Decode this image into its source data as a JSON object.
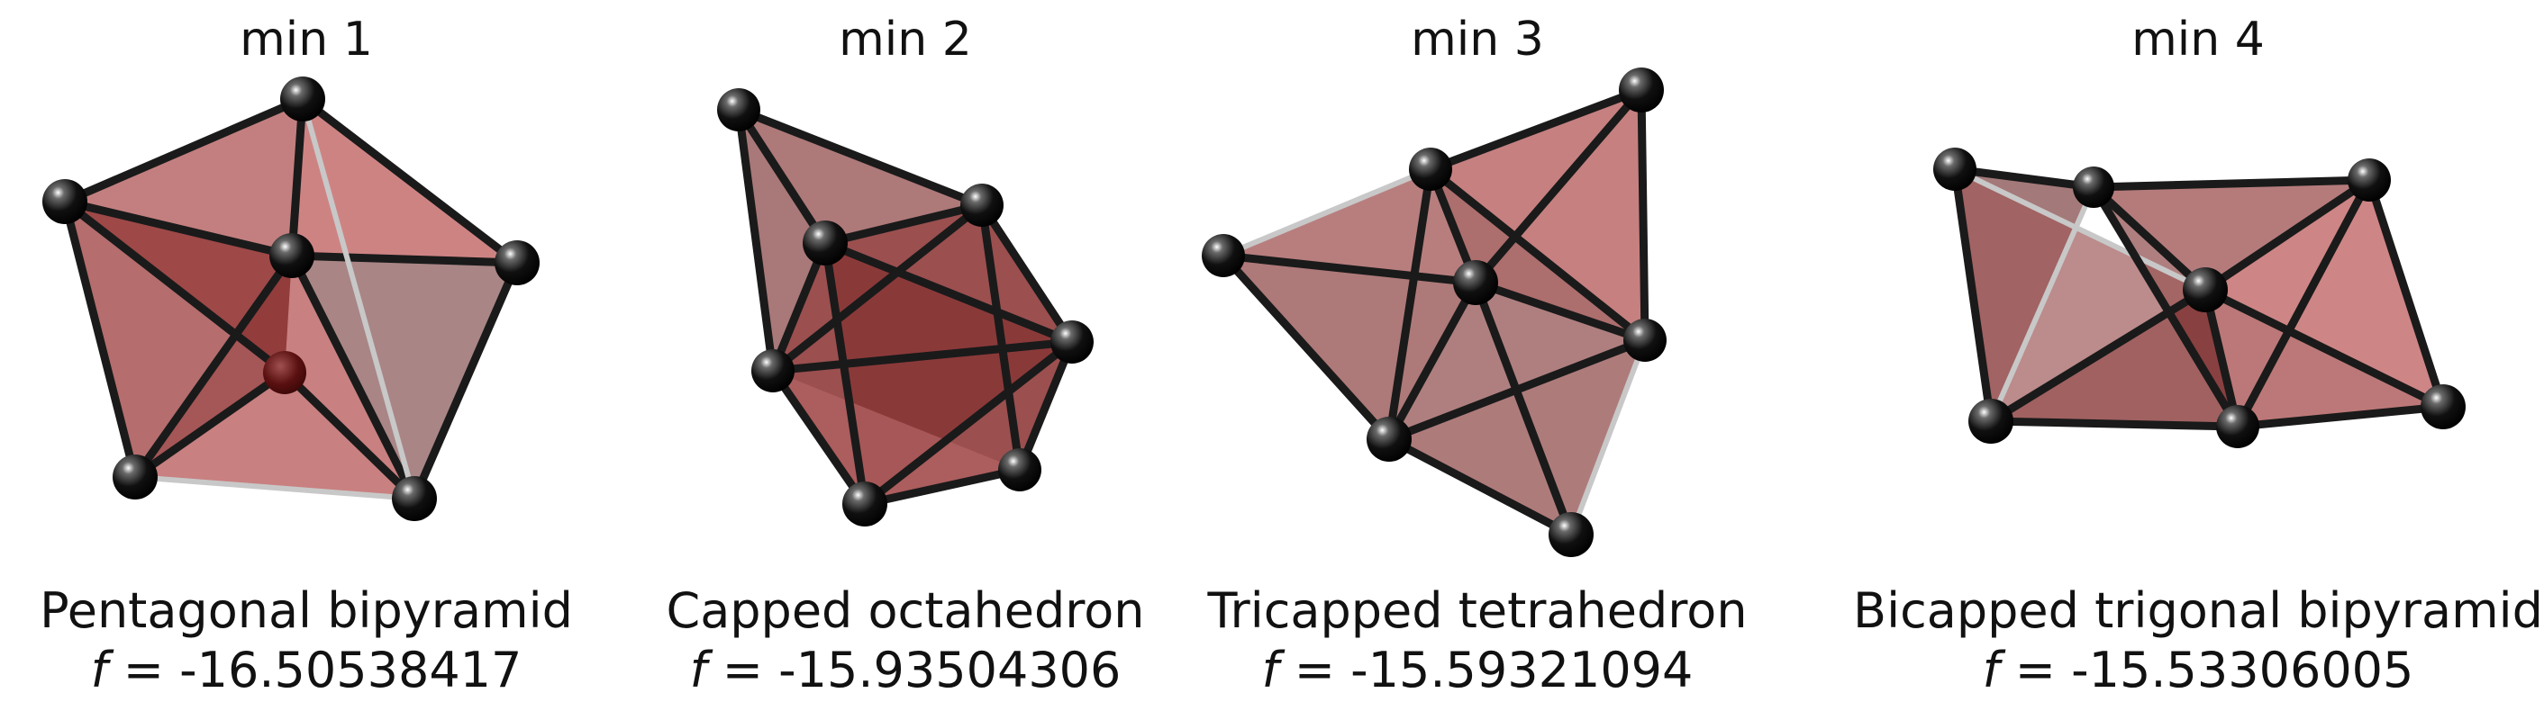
{
  "colors": {
    "face_light": "#c97676",
    "face_mid": "#a35a5a",
    "face_dark": "#7a2424",
    "face_grey": "#9a7070",
    "atom": "#0a0a0a"
  },
  "panels": [
    {
      "title": "min 1",
      "structure": "Pentagonal bipyramid",
      "f_symbol": "f",
      "f_value": "= -16.50538417"
    },
    {
      "title": "min 2",
      "structure": "Capped octahedron",
      "f_symbol": "f",
      "f_value": "= -15.93504306"
    },
    {
      "title": "min 3",
      "structure": "Tricapped tetrahedron",
      "f_symbol": "f",
      "f_value": "= -15.59321094"
    },
    {
      "title": "min 4",
      "structure": "Bicapped trigonal bipyramid",
      "f_symbol": "f",
      "f_value": "= -15.53306005"
    }
  ]
}
